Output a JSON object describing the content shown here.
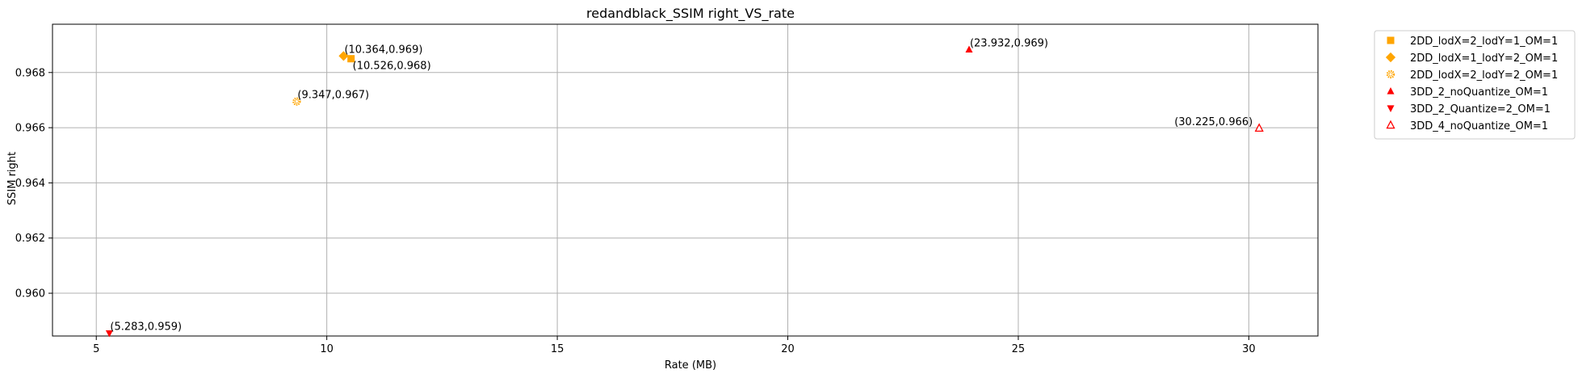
{
  "chart_data": {
    "type": "scatter",
    "title": "redandblack_SSIM right_VS_rate",
    "xlabel": "Rate (MB)",
    "ylabel": "SSIM right",
    "xlim": [
      4.05,
      31.5
    ],
    "ylim": [
      0.95845,
      0.96975
    ],
    "xticks": [
      5,
      10,
      15,
      20,
      25,
      30
    ],
    "xtick_labels": [
      "5",
      "10",
      "15",
      "20",
      "25",
      "30"
    ],
    "yticks": [
      0.96,
      0.962,
      0.964,
      0.966,
      0.968
    ],
    "ytick_labels": [
      "0.960",
      "0.962",
      "0.964",
      "0.966",
      "0.968"
    ],
    "grid": true,
    "legend_position": "outside-right",
    "series": [
      {
        "name": "2DD_lodX=2_lodY=1_OM=1",
        "color": "#FFA500",
        "marker": "square",
        "points": [
          {
            "x": 10.526,
            "y": 0.9685,
            "label": "(10.526,0.968)",
            "label_pos": "below-right"
          }
        ]
      },
      {
        "name": "2DD_lodX=1_lodY=2_OM=1",
        "color": "#FFA500",
        "marker": "diamond",
        "points": [
          {
            "x": 10.364,
            "y": 0.9686,
            "label": "(10.364,0.969)",
            "label_pos": "above-right"
          }
        ]
      },
      {
        "name": "2DD_lodX=2_lodY=2_OM=1",
        "color": "#FFA500",
        "marker": "gear",
        "points": [
          {
            "x": 9.347,
            "y": 0.96695,
            "label": "(9.347,0.967)",
            "label_pos": "above-right"
          }
        ]
      },
      {
        "name": "3DD_2_noQuantize_OM=1",
        "color": "#FF0000",
        "marker": "triangle-up",
        "points": [
          {
            "x": 23.932,
            "y": 0.96883,
            "label": "(23.932,0.969)",
            "label_pos": "above-right"
          }
        ]
      },
      {
        "name": "3DD_2_Quantize=2_OM=1",
        "color": "#FF0000",
        "marker": "triangle-down",
        "points": [
          {
            "x": 5.283,
            "y": 0.95855,
            "label": "(5.283,0.959)",
            "label_pos": "above-right"
          }
        ]
      },
      {
        "name": "3DD_4_noQuantize_OM=1",
        "color": "#FF0000",
        "marker": "triangle-up-open",
        "points": [
          {
            "x": 30.225,
            "y": 0.96598,
            "label": "(30.225,0.966)",
            "label_pos": "above-left"
          }
        ]
      }
    ]
  }
}
